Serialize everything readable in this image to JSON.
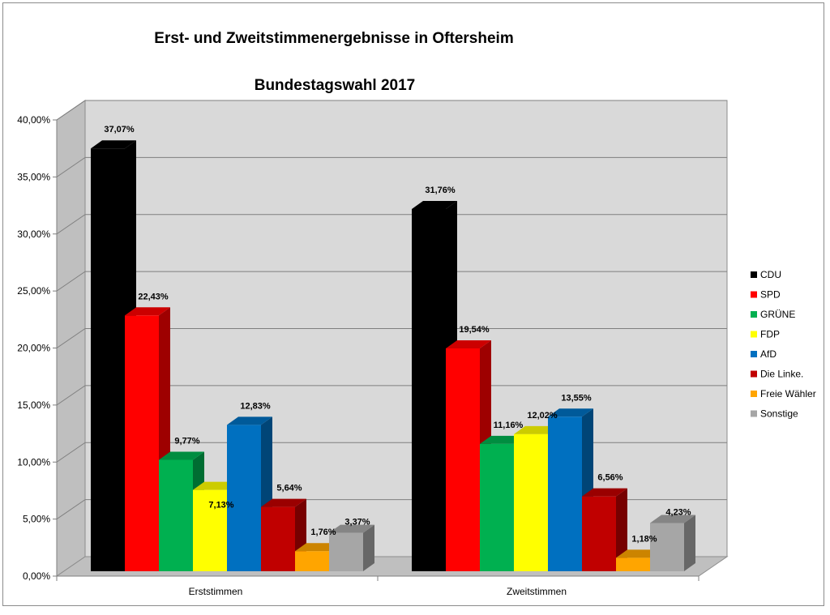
{
  "chart_data": {
    "type": "bar",
    "title": "Erst- und Zweitstimmenergebnisse in Oftersheim",
    "subtitle": "Bundestagswahl 2017",
    "categories": [
      "Erststimmen",
      "Zweitstimmen"
    ],
    "ylim": [
      0,
      40
    ],
    "y_ticks": [
      "0,00%",
      "5,00%",
      "10,00%",
      "15,00%",
      "20,00%",
      "25,00%",
      "30,00%",
      "35,00%",
      "40,00%"
    ],
    "grid": true,
    "legend_position": "right",
    "series": [
      {
        "name": "CDU",
        "color": "#000000",
        "values": [
          37.07,
          31.76
        ],
        "labels": [
          "37,07%",
          "31,76%"
        ]
      },
      {
        "name": "SPD",
        "color": "#ff0000",
        "values": [
          22.43,
          19.54
        ],
        "labels": [
          "22,43%",
          "19,54%"
        ]
      },
      {
        "name": "GRÜNE",
        "color": "#00b050",
        "values": [
          9.77,
          11.16
        ],
        "labels": [
          "9,77%",
          "11,16%"
        ]
      },
      {
        "name": "FDP",
        "color": "#ffff00",
        "values": [
          7.13,
          12.02
        ],
        "labels": [
          "7,13%",
          "12,02%"
        ]
      },
      {
        "name": "AfD",
        "color": "#0070c0",
        "values": [
          12.83,
          13.55
        ],
        "labels": [
          "12,83%",
          "13,55%"
        ]
      },
      {
        "name": "Die Linke.",
        "color": "#c00000",
        "values": [
          5.64,
          6.56
        ],
        "labels": [
          "5,64%",
          "6,56%"
        ]
      },
      {
        "name": "Freie Wähler",
        "color": "#ffa500",
        "values": [
          1.76,
          1.18
        ],
        "labels": [
          "1,76%",
          "1,18%"
        ]
      },
      {
        "name": "Sonstige",
        "color": "#a6a6a6",
        "values": [
          3.37,
          4.23
        ],
        "labels": [
          "3,37%",
          "4,23%"
        ]
      }
    ]
  }
}
